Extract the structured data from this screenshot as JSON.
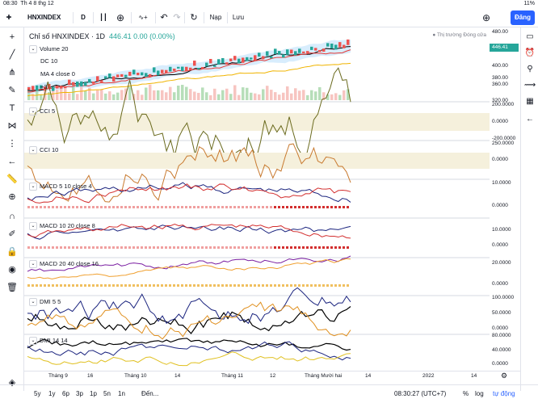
{
  "status": {
    "time": "08:30",
    "date": "Th 4 8 thg 12",
    "battery": "11%"
  },
  "toolbar": {
    "symbol": "HNXINDEX",
    "interval": "D",
    "undo_icon": "undo-icon",
    "nap": "Nạp",
    "luu": "Lưu",
    "dang": "Đăng"
  },
  "header": {
    "title": "Chỉ số HNXINDEX · 1D",
    "price": "446.41 0.00 (0.00%)",
    "market_status": "● Thị trường Đóng cửa",
    "legend": [
      "Volume 20",
      "DC 10",
      "MA 4 close 0",
      "+3"
    ]
  },
  "panes": [
    {
      "label": "CCI 5",
      "axis": [
        "200.0000",
        "0.0000",
        "-200.0000"
      ]
    },
    {
      "label": "CCI 10",
      "axis": [
        "250.0000",
        "0.0000"
      ]
    },
    {
      "label": "MACD 5 10 close 4",
      "axis": [
        "10.0000",
        "0.0000"
      ]
    },
    {
      "label": "MACD 10 20 close 8",
      "axis": [
        "10.0000",
        "0.0000"
      ]
    },
    {
      "label": "MACD 20 40 close 16",
      "axis": [
        "20.0000",
        "0.0000"
      ]
    },
    {
      "label": "DMI 5 5",
      "axis": [
        "100.0000",
        "50.0000",
        "0.0000"
      ]
    },
    {
      "label": "DMI 14 14",
      "axis": [
        "80.0000",
        "40.0000",
        "0.0000"
      ]
    }
  ],
  "price_axis": [
    "480.00",
    "446.41",
    "400.00",
    "380.00",
    "360.00",
    "320.00"
  ],
  "time_axis": [
    "Tháng 9",
    "16",
    "Tháng 10",
    "14",
    "Tháng 11",
    "12",
    "Tháng Mười hai",
    "14",
    "2022",
    "14"
  ],
  "bottom": {
    "ranges": [
      "5y",
      "1y",
      "6p",
      "3p",
      "1p",
      "5n",
      "1n"
    ],
    "goto": "Đến...",
    "clock": "08:30:27 (UTC+7)",
    "percent": "%",
    "log": "log",
    "auto": "tự động"
  },
  "colors": {
    "accent": "#2962ff",
    "up": "#26a69a",
    "down": "#ef5350",
    "cci": "#6b6b1f",
    "cci10": "#c8792e"
  }
}
